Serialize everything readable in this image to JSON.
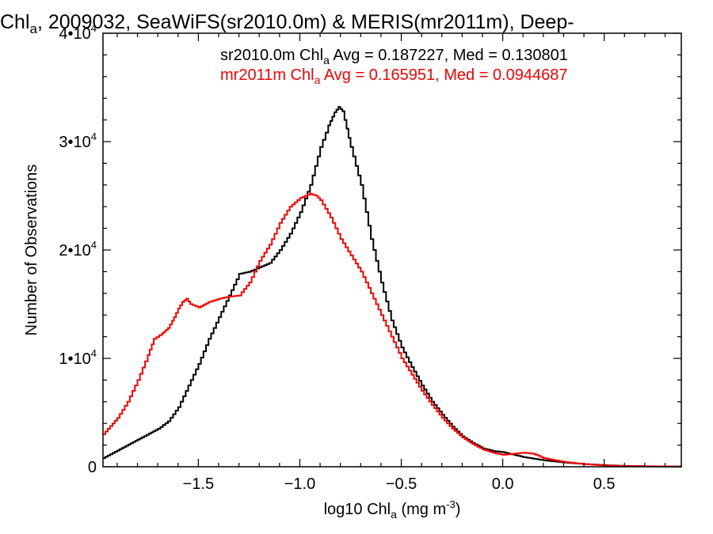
{
  "chart_data": {
    "type": "line",
    "title": {
      "pre": "Chl",
      "sub": "a",
      "post": ", 2009032, SeaWiFS(sr2010.0m) & MERIS(mr2011m), Deep-"
    },
    "xlabel": {
      "pre": "log10 Chl",
      "sub": "a",
      "mid": " (mg m",
      "sup": "-3",
      "post": ")"
    },
    "ylabel": "Number of Observations",
    "xlim": [
      -1.97,
      0.88
    ],
    "ylim": [
      0,
      40000
    ],
    "x_ticks": [
      {
        "value": -1.5,
        "label": "−1.5"
      },
      {
        "value": -1.0,
        "label": "−1.0"
      },
      {
        "value": -0.5,
        "label": "−0.5"
      },
      {
        "value": 0.0,
        "label": "0.0"
      },
      {
        "value": 0.5,
        "label": "0.5"
      }
    ],
    "y_ticks": [
      {
        "value": 0,
        "label": "0",
        "exp": ""
      },
      {
        "value": 10000,
        "label": "1•10",
        "exp": "4"
      },
      {
        "value": 20000,
        "label": "2•10",
        "exp": "4"
      },
      {
        "value": 30000,
        "label": "3•10",
        "exp": "4"
      },
      {
        "value": 40000,
        "label": "4•10",
        "exp": "4"
      }
    ],
    "grid": false,
    "legend_position": "top-right",
    "series": [
      {
        "name": "sr2010.0m",
        "color": "#000000",
        "legend": {
          "pre": "sr2010.0m Chl",
          "sub": "a",
          "post": " Avg = 0.187227, Med = 0.130801"
        },
        "x": [
          -1.97,
          -1.9,
          -1.8,
          -1.7,
          -1.65,
          -1.6,
          -1.55,
          -1.5,
          -1.45,
          -1.4,
          -1.35,
          -1.3,
          -1.25,
          -1.2,
          -1.15,
          -1.1,
          -1.05,
          -1.0,
          -0.95,
          -0.9,
          -0.86,
          -0.83,
          -0.81,
          -0.79,
          -0.77,
          -0.75,
          -0.7,
          -0.65,
          -0.6,
          -0.55,
          -0.5,
          -0.45,
          -0.4,
          -0.35,
          -0.3,
          -0.25,
          -0.2,
          -0.15,
          -0.1,
          -0.05,
          0.0,
          0.1,
          0.2,
          0.3,
          0.4,
          0.5,
          0.6,
          0.7,
          0.88
        ],
        "y": [
          800,
          1500,
          2500,
          3500,
          4200,
          5500,
          7500,
          9500,
          11800,
          13800,
          15800,
          17800,
          18000,
          18400,
          18800,
          20000,
          21500,
          23500,
          26000,
          29500,
          31500,
          32700,
          33200,
          32800,
          31200,
          29500,
          26000,
          21000,
          17000,
          13500,
          11000,
          9200,
          7500,
          6000,
          4800,
          3700,
          2800,
          2200,
          1700,
          1450,
          1350,
          900,
          600,
          400,
          250,
          150,
          80,
          40,
          10
        ]
      },
      {
        "name": "mr2011m",
        "color": "#ff0000",
        "legend": {
          "pre": "mr2011m Chl",
          "sub": "a",
          "post": " Avg = 0.165951, Med = 0.0944687"
        },
        "x": [
          -1.97,
          -1.9,
          -1.85,
          -1.8,
          -1.75,
          -1.72,
          -1.68,
          -1.65,
          -1.62,
          -1.6,
          -1.58,
          -1.56,
          -1.54,
          -1.5,
          -1.45,
          -1.4,
          -1.35,
          -1.3,
          -1.25,
          -1.2,
          -1.15,
          -1.1,
          -1.05,
          -1.0,
          -0.95,
          -0.92,
          -0.9,
          -0.85,
          -0.8,
          -0.75,
          -0.7,
          -0.65,
          -0.6,
          -0.55,
          -0.5,
          -0.45,
          -0.4,
          -0.35,
          -0.3,
          -0.25,
          -0.2,
          -0.15,
          -0.1,
          -0.05,
          0.0,
          0.05,
          0.1,
          0.15,
          0.2,
          0.3,
          0.4,
          0.5,
          0.6,
          0.88
        ],
        "y": [
          3000,
          4500,
          6000,
          8000,
          10300,
          11800,
          12300,
          12800,
          13800,
          14600,
          15200,
          15500,
          15000,
          14700,
          15200,
          15500,
          15700,
          15800,
          17000,
          19000,
          20500,
          22500,
          24000,
          24800,
          25200,
          25000,
          24600,
          23000,
          21000,
          19500,
          18000,
          16000,
          14000,
          12000,
          10000,
          8500,
          7000,
          5700,
          4500,
          3500,
          2700,
          2100,
          1600,
          1300,
          1100,
          1200,
          1300,
          1200,
          800,
          450,
          250,
          120,
          60,
          20
        ]
      }
    ]
  }
}
